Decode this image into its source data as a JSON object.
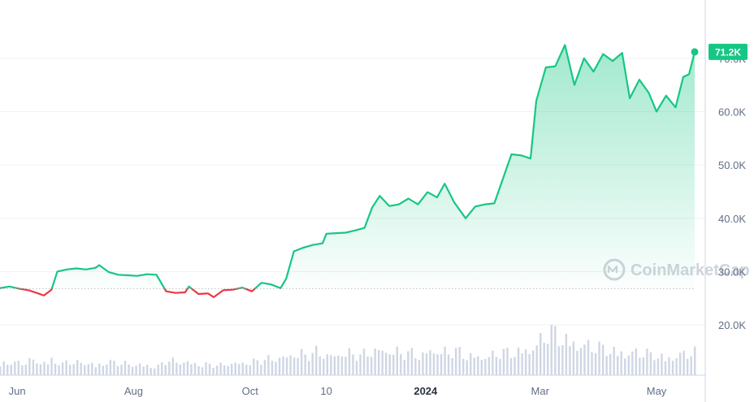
{
  "watermark": "CoinMarketCap",
  "colors": {
    "up": "#16c784",
    "down": "#ea3943",
    "grid": "#eff2f5",
    "volume": "#cfd6e4"
  },
  "chart_data": {
    "type": "line",
    "title": "",
    "xlabel": "",
    "ylabel": "",
    "baseline": 26800,
    "current_price_label": "71.2K",
    "ylim": [
      10000,
      80000
    ],
    "xlim": [
      "2023-05-23",
      "2024-05-21"
    ],
    "y_ticks": [
      {
        "value": 20000,
        "label": "20.0K"
      },
      {
        "value": 30000,
        "label": "30.0K"
      },
      {
        "value": 40000,
        "label": "40.0K"
      },
      {
        "value": 50000,
        "label": "50.0K"
      },
      {
        "value": 60000,
        "label": "60.0K"
      },
      {
        "value": 70000,
        "label": "70.0K"
      }
    ],
    "x_ticks": [
      {
        "date": "2023-06-01",
        "label": "Jun",
        "bold": false
      },
      {
        "date": "2023-08-01",
        "label": "Aug",
        "bold": false
      },
      {
        "date": "2023-10-01",
        "label": "Oct",
        "bold": false
      },
      {
        "date": "2023-11-10",
        "label": "10",
        "bold": false
      },
      {
        "date": "2024-01-01",
        "label": "2024",
        "bold": true
      },
      {
        "date": "2024-03-01",
        "label": "Mar",
        "bold": false
      },
      {
        "date": "2024-05-01",
        "label": "May",
        "bold": false
      }
    ],
    "x": [
      "2023-05-23",
      "2023-05-28",
      "2023-06-02",
      "2023-06-07",
      "2023-06-12",
      "2023-06-15",
      "2023-06-19",
      "2023-06-22",
      "2023-06-27",
      "2023-07-02",
      "2023-07-07",
      "2023-07-12",
      "2023-07-14",
      "2023-07-19",
      "2023-07-24",
      "2023-07-29",
      "2023-08-03",
      "2023-08-08",
      "2023-08-13",
      "2023-08-18",
      "2023-08-23",
      "2023-08-28",
      "2023-08-30",
      "2023-09-04",
      "2023-09-09",
      "2023-09-12",
      "2023-09-17",
      "2023-09-22",
      "2023-09-27",
      "2023-10-02",
      "2023-10-07",
      "2023-10-12",
      "2023-10-17",
      "2023-10-20",
      "2023-10-24",
      "2023-10-29",
      "2023-11-03",
      "2023-11-08",
      "2023-11-10",
      "2023-11-15",
      "2023-11-20",
      "2023-11-25",
      "2023-11-30",
      "2023-12-04",
      "2023-12-08",
      "2023-12-13",
      "2023-12-18",
      "2023-12-23",
      "2023-12-28",
      "2024-01-02",
      "2024-01-07",
      "2024-01-11",
      "2024-01-16",
      "2024-01-22",
      "2024-01-27",
      "2024-02-01",
      "2024-02-06",
      "2024-02-10",
      "2024-02-15",
      "2024-02-20",
      "2024-02-25",
      "2024-02-28",
      "2024-03-04",
      "2024-03-09",
      "2024-03-14",
      "2024-03-19",
      "2024-03-24",
      "2024-03-29",
      "2024-04-03",
      "2024-04-08",
      "2024-04-13",
      "2024-04-17",
      "2024-04-22",
      "2024-04-27",
      "2024-05-01",
      "2024-05-06",
      "2024-05-11",
      "2024-05-15",
      "2024-05-18",
      "2024-05-21"
    ],
    "values": [
      26900,
      27200,
      26800,
      26500,
      25900,
      25500,
      26600,
      30000,
      30400,
      30600,
      30400,
      30700,
      31200,
      29900,
      29400,
      29300,
      29200,
      29500,
      29400,
      26300,
      26000,
      26100,
      27200,
      25800,
      25900,
      25200,
      26500,
      26600,
      27000,
      26300,
      27900,
      27600,
      26900,
      28700,
      33800,
      34500,
      35000,
      35300,
      37100,
      37200,
      37300,
      37700,
      38200,
      42000,
      44200,
      42300,
      42600,
      43700,
      42600,
      44900,
      43900,
      46500,
      43000,
      40000,
      42200,
      42600,
      42800,
      46900,
      52000,
      51800,
      51200,
      62000,
      68300,
      68500,
      72500,
      65000,
      70000,
      67500,
      70800,
      69500,
      71000,
      62500,
      66000,
      63500,
      60000,
      63000,
      60800,
      66500,
      67000,
      71200
    ],
    "volume": [
      18,
      20,
      17,
      19,
      22,
      18,
      25,
      16,
      20,
      17,
      19,
      14,
      21,
      18,
      17,
      15,
      16,
      14,
      13,
      22,
      19,
      20,
      18,
      16,
      15,
      14,
      17,
      18,
      19,
      20,
      22,
      24,
      26,
      30,
      32,
      28,
      34,
      30,
      29,
      33,
      31,
      28,
      35,
      38,
      36,
      34,
      31,
      32,
      30,
      38,
      34,
      33,
      35,
      30,
      28,
      27,
      29,
      32,
      34,
      36,
      38,
      44,
      58,
      62,
      55,
      50,
      46,
      42,
      40,
      38,
      36,
      34,
      33,
      32,
      30,
      28,
      26,
      30,
      31,
      33
    ]
  }
}
